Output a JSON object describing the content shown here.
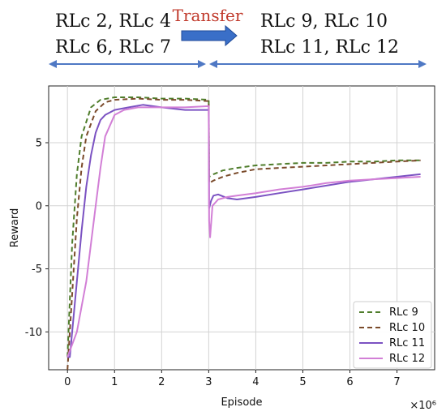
{
  "header": {
    "left_line1": "RLc 2, RLc 4",
    "left_line2": "RLc 6, RLc 7",
    "transfer_label": "Transfer",
    "right_line1": "RLc 9, RLc 10",
    "right_line2": "RLc 11, RLc 12"
  },
  "colors": {
    "rlc9": "#4f7d2b",
    "rlc10": "#7a4a2a",
    "rlc11": "#7b52c2",
    "rlc12": "#d27fd6",
    "transfer_text": "#c0392b",
    "arrow_fill": "#3a6fc8",
    "span_arrow": "#4f78c4"
  },
  "chart_data": {
    "type": "line",
    "title": "",
    "xlabel": "Episode",
    "ylabel": "Reward",
    "x_scale_label": "×10⁶",
    "xlim": [
      -0.4,
      7.8
    ],
    "ylim": [
      -13,
      9.5
    ],
    "x_ticks": [
      0,
      1,
      2,
      3,
      4,
      5,
      6,
      7
    ],
    "x_tick_labels": [
      "0",
      "1",
      "2",
      "3",
      "4",
      "5",
      "6",
      "7"
    ],
    "y_ticks": [
      -10,
      -5,
      0,
      5
    ],
    "y_tick_labels": [
      "-10",
      "-5",
      "0",
      "5"
    ],
    "grid": true,
    "legend_position": "bottom-right",
    "series": [
      {
        "name": "RLc 9",
        "style": "dashed",
        "x": [
          0,
          0.1,
          0.2,
          0.3,
          0.5,
          0.7,
          1.0,
          1.5,
          2.0,
          2.5,
          3.0,
          3.01,
          3.1,
          3.3,
          3.6,
          4.0,
          4.5,
          5.0,
          5.5,
          6.0,
          6.5,
          7.0,
          7.5
        ],
        "y": [
          -12,
          -3,
          2.5,
          5.5,
          7.8,
          8.4,
          8.6,
          8.6,
          8.5,
          8.5,
          8.4,
          2.3,
          2.5,
          2.8,
          3.0,
          3.2,
          3.3,
          3.4,
          3.4,
          3.5,
          3.5,
          3.6,
          3.6
        ]
      },
      {
        "name": "RLc 10",
        "style": "dashed",
        "x": [
          0,
          0.1,
          0.2,
          0.3,
          0.4,
          0.6,
          0.8,
          1.0,
          1.5,
          2.0,
          2.5,
          3.0,
          3.01,
          3.1,
          3.3,
          3.6,
          4.0,
          4.5,
          5.0,
          5.5,
          6.0,
          6.5,
          7.0,
          7.5
        ],
        "y": [
          -13,
          -7,
          -1,
          3,
          5.5,
          7.5,
          8.2,
          8.4,
          8.5,
          8.4,
          8.4,
          8.3,
          1.8,
          2.0,
          2.3,
          2.6,
          2.9,
          3.0,
          3.1,
          3.2,
          3.3,
          3.4,
          3.5,
          3.6
        ]
      },
      {
        "name": "RLc 11",
        "style": "solid",
        "x": [
          0,
          0.05,
          0.1,
          0.2,
          0.3,
          0.4,
          0.5,
          0.6,
          0.7,
          0.8,
          1.0,
          1.3,
          1.6,
          2.0,
          2.5,
          3.0,
          3.01,
          3.05,
          3.1,
          3.2,
          3.4,
          3.6,
          4.0,
          4.5,
          5.0,
          5.5,
          6.0,
          6.5,
          7.0,
          7.5
        ],
        "y": [
          -12,
          -12,
          -10,
          -6,
          -2,
          1.5,
          4,
          5.8,
          6.8,
          7.2,
          7.6,
          7.8,
          8.0,
          7.8,
          7.6,
          7.6,
          -0.2,
          0.4,
          0.8,
          0.9,
          0.6,
          0.5,
          0.7,
          1.0,
          1.3,
          1.6,
          1.9,
          2.1,
          2.3,
          2.5
        ]
      },
      {
        "name": "RLc 12",
        "style": "solid",
        "x": [
          0,
          0.1,
          0.2,
          0.3,
          0.4,
          0.5,
          0.6,
          0.7,
          0.8,
          1.0,
          1.2,
          1.5,
          2.0,
          2.5,
          3.0,
          3.01,
          3.03,
          3.08,
          3.2,
          3.4,
          3.6,
          4.0,
          4.5,
          5.0,
          5.5,
          6.0,
          6.5,
          7.0,
          7.5
        ],
        "y": [
          -12,
          -11,
          -10,
          -8,
          -6,
          -3,
          0,
          3,
          5.5,
          7.2,
          7.6,
          7.8,
          7.8,
          7.8,
          7.9,
          -1.2,
          -2.5,
          0.0,
          0.5,
          0.7,
          0.8,
          1.0,
          1.3,
          1.5,
          1.8,
          2.0,
          2.1,
          2.2,
          2.3
        ]
      }
    ]
  }
}
